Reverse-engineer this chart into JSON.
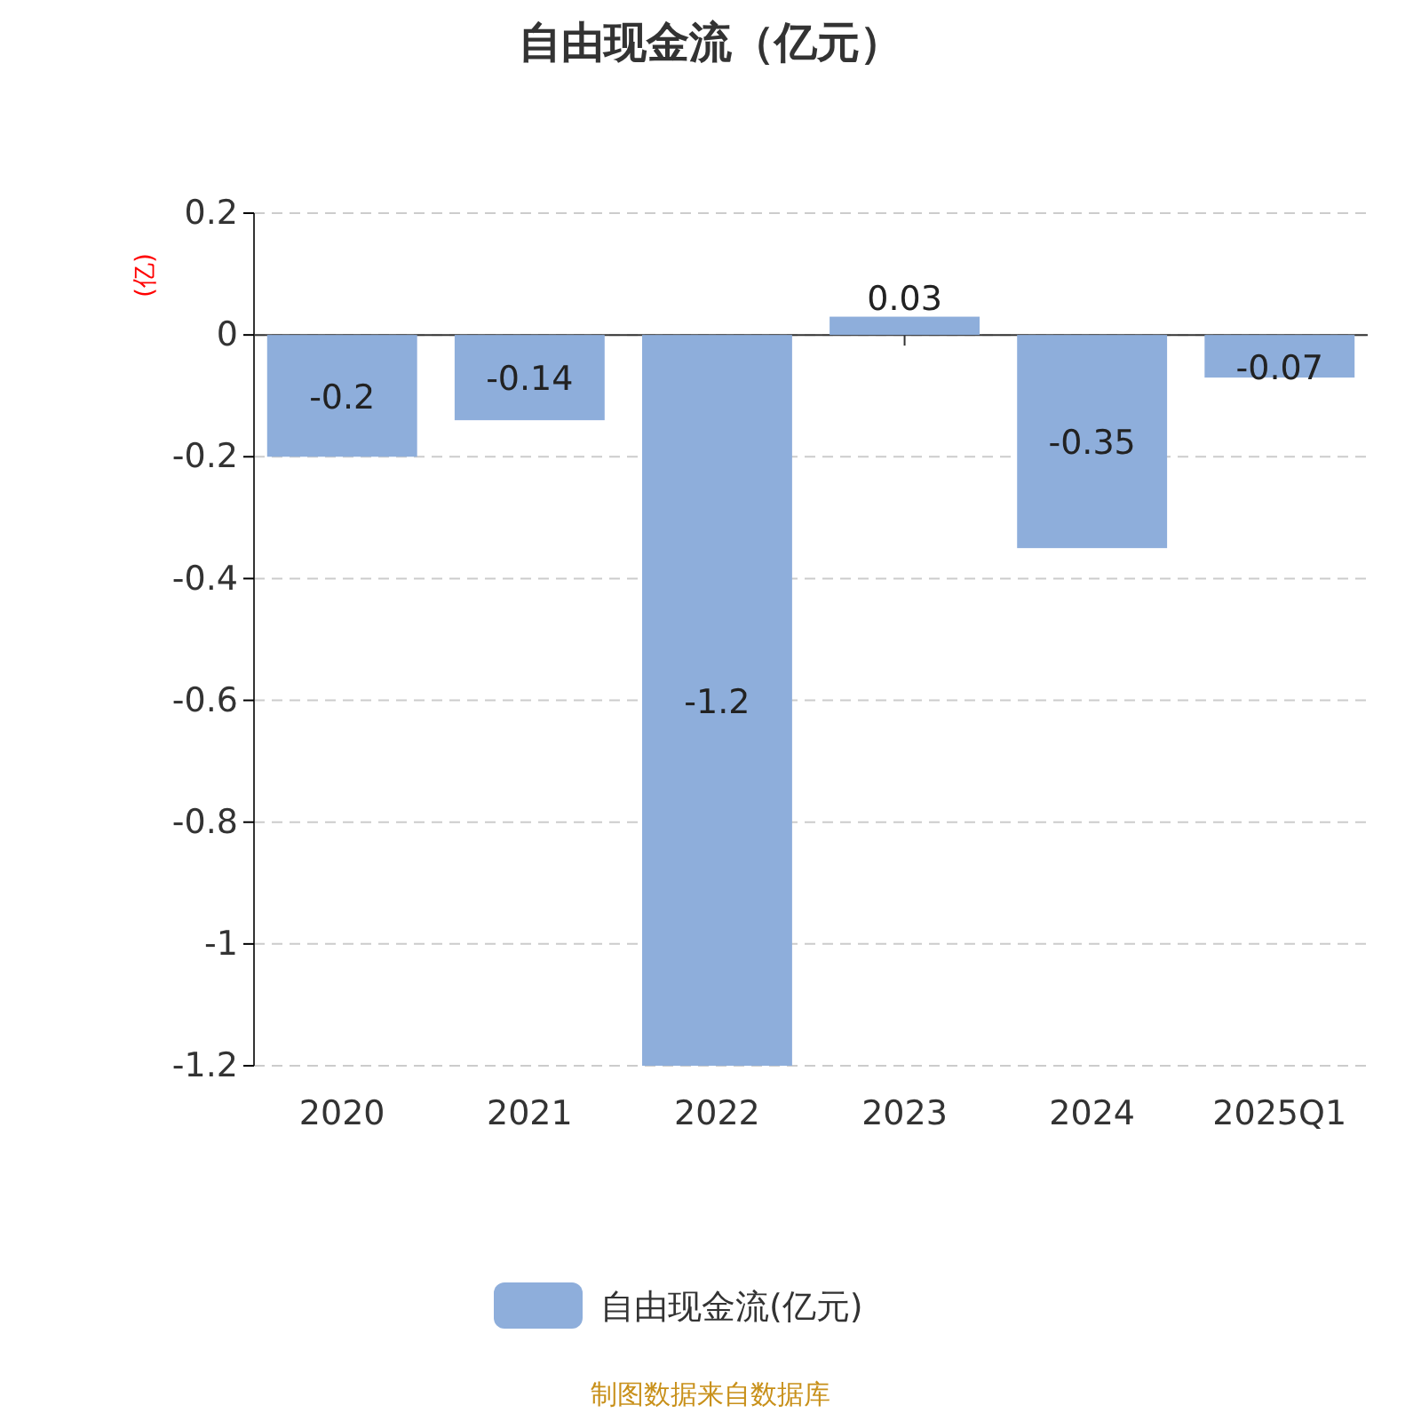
{
  "chart_data": {
    "type": "bar",
    "title": "自由现金流（亿元）",
    "ylabel": "(亿)",
    "categories": [
      "2020",
      "2021",
      "2022",
      "2023",
      "2024",
      "2025Q1"
    ],
    "series": [
      {
        "name": "自由现金流(亿元)",
        "color": "#8eaedb",
        "values": [
          -0.2,
          -0.14,
          -1.2,
          0.03,
          -0.35,
          -0.07
        ]
      }
    ],
    "ylim": [
      -1.2,
      0.2
    ],
    "yticks": [
      {
        "value": 0.2,
        "label": "0.2"
      },
      {
        "value": 0,
        "label": "0"
      },
      {
        "value": -0.2,
        "label": "-0.2"
      },
      {
        "value": -0.4,
        "label": "-0.4"
      },
      {
        "value": -0.6,
        "label": "-0.6"
      },
      {
        "value": -0.8,
        "label": "-0.8"
      },
      {
        "value": -1,
        "label": "-1"
      },
      {
        "value": -1.2,
        "label": "-1.2"
      }
    ],
    "grid": "y",
    "legend": "bottom",
    "data_labels": true,
    "annotations": [
      "制图数据来自数据库"
    ]
  }
}
